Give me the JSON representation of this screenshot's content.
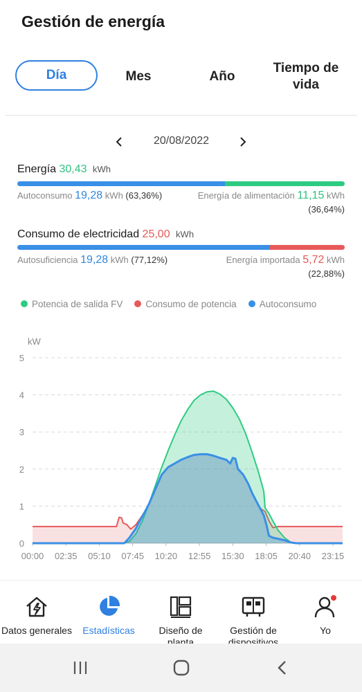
{
  "header": {
    "title": "Gestión de energía"
  },
  "tabs": [
    {
      "label": "Día",
      "active": true
    },
    {
      "label": "Mes",
      "active": false
    },
    {
      "label": "Año",
      "active": false
    },
    {
      "label": "Tiempo de vida",
      "active": false
    }
  ],
  "date": {
    "value": "20/08/2022"
  },
  "energy": {
    "label": "Energía",
    "value": "30,43",
    "unit": "kWh",
    "autoconsumo": {
      "label": "Autoconsumo",
      "value": "19,28",
      "unit": "kWh",
      "pct": "(63,36%)",
      "fraction": 0.6336
    },
    "alimentacion": {
      "label": "Energía de alimentación",
      "value": "11,15",
      "unit": "kWh",
      "pct": "(36,64%)"
    }
  },
  "consumption": {
    "label": "Consumo de electricidad",
    "value": "25,00",
    "unit": "kWh",
    "autosuficiencia": {
      "label": "Autosuficiencia",
      "value": "19,28",
      "unit": "kWh",
      "pct": "(77,12%)",
      "fraction": 0.7712
    },
    "importada": {
      "label": "Energía importada",
      "value": "5,72",
      "unit": "kWh",
      "pct": "(22,88%)"
    }
  },
  "legend": [
    {
      "label": "Potencia de salida FV",
      "color": "#2ecb82"
    },
    {
      "label": "Consumo de potencia",
      "color": "#e65a59"
    },
    {
      "label": "Autoconsumo",
      "color": "#3a8fe6"
    }
  ],
  "chart_data": {
    "type": "area",
    "ylabel": "kW",
    "ylim": [
      0,
      5
    ],
    "yticks": [
      "0",
      "1",
      "2",
      "3",
      "4",
      "5"
    ],
    "xlim": [
      0,
      24
    ],
    "xticks": [
      {
        "t": 0,
        "label": "00:00"
      },
      {
        "t": 2.5833,
        "label": "02:35"
      },
      {
        "t": 5.1667,
        "label": "05:10"
      },
      {
        "t": 7.75,
        "label": "07:45"
      },
      {
        "t": 10.3333,
        "label": "10:20"
      },
      {
        "t": 12.9167,
        "label": "12:55"
      },
      {
        "t": 15.5,
        "label": "15:30"
      },
      {
        "t": 18.0833,
        "label": "18:05"
      },
      {
        "t": 20.6667,
        "label": "20:40"
      },
      {
        "t": 23.25,
        "label": "23:15"
      }
    ],
    "grid": true,
    "series": [
      {
        "name": "Potencia de salida FV",
        "color": "#2ecb82",
        "points": [
          [
            0,
            0
          ],
          [
            7.0,
            0
          ],
          [
            7.5,
            0.05
          ],
          [
            8.0,
            0.25
          ],
          [
            8.5,
            0.6
          ],
          [
            9.0,
            1.05
          ],
          [
            9.5,
            1.55
          ],
          [
            10.0,
            2.05
          ],
          [
            10.5,
            2.5
          ],
          [
            11.0,
            2.92
          ],
          [
            11.5,
            3.3
          ],
          [
            12.0,
            3.6
          ],
          [
            12.5,
            3.85
          ],
          [
            13.0,
            4.0
          ],
          [
            13.5,
            4.08
          ],
          [
            14.0,
            4.1
          ],
          [
            14.5,
            4.02
          ],
          [
            15.0,
            3.88
          ],
          [
            15.5,
            3.65
          ],
          [
            16.0,
            3.35
          ],
          [
            16.5,
            2.95
          ],
          [
            17.0,
            2.45
          ],
          [
            17.5,
            1.9
          ],
          [
            17.9,
            1.4
          ],
          [
            18.0,
            0.95
          ],
          [
            18.3,
            0.8
          ],
          [
            18.6,
            0.6
          ],
          [
            19.0,
            0.35
          ],
          [
            19.5,
            0.15
          ],
          [
            20.0,
            0.02
          ],
          [
            20.5,
            0
          ],
          [
            24,
            0
          ]
        ]
      },
      {
        "name": "Consumo de potencia",
        "color": "#e65a59",
        "points": [
          [
            0,
            0.45
          ],
          [
            6.5,
            0.45
          ],
          [
            6.7,
            0.7
          ],
          [
            6.9,
            0.68
          ],
          [
            7.0,
            0.55
          ],
          [
            7.3,
            0.5
          ],
          [
            7.6,
            0.38
          ],
          [
            8.0,
            0.5
          ],
          [
            8.3,
            0.65
          ],
          [
            8.7,
            0.85
          ],
          [
            9.0,
            1.05
          ],
          [
            9.5,
            1.45
          ],
          [
            10.0,
            1.85
          ],
          [
            10.5,
            2.05
          ],
          [
            11.0,
            2.15
          ],
          [
            11.5,
            2.25
          ],
          [
            12.0,
            2.32
          ],
          [
            12.5,
            2.38
          ],
          [
            13.0,
            2.4
          ],
          [
            13.5,
            2.4
          ],
          [
            14.0,
            2.36
          ],
          [
            14.5,
            2.3
          ],
          [
            15.0,
            2.25
          ],
          [
            15.3,
            2.15
          ],
          [
            15.5,
            2.3
          ],
          [
            15.7,
            2.28
          ],
          [
            15.9,
            2.0
          ],
          [
            16.3,
            1.85
          ],
          [
            16.7,
            1.6
          ],
          [
            17.0,
            1.35
          ],
          [
            17.3,
            1.15
          ],
          [
            17.6,
            0.95
          ],
          [
            18.0,
            0.85
          ],
          [
            18.3,
            0.6
          ],
          [
            18.6,
            0.42
          ],
          [
            19.0,
            0.45
          ],
          [
            24,
            0.45
          ]
        ]
      },
      {
        "name": "Autoconsumo",
        "color": "#3a8fe6",
        "points": [
          [
            0,
            0
          ],
          [
            7.1,
            0
          ],
          [
            7.5,
            0.15
          ],
          [
            7.8,
            0.3
          ],
          [
            8.0,
            0.4
          ],
          [
            8.3,
            0.6
          ],
          [
            8.7,
            0.85
          ],
          [
            9.0,
            1.05
          ],
          [
            9.5,
            1.45
          ],
          [
            10.0,
            1.85
          ],
          [
            10.5,
            2.05
          ],
          [
            11.0,
            2.15
          ],
          [
            11.5,
            2.25
          ],
          [
            12.0,
            2.32
          ],
          [
            12.5,
            2.38
          ],
          [
            13.0,
            2.4
          ],
          [
            13.5,
            2.4
          ],
          [
            14.0,
            2.36
          ],
          [
            14.5,
            2.3
          ],
          [
            15.0,
            2.25
          ],
          [
            15.3,
            2.15
          ],
          [
            15.5,
            2.3
          ],
          [
            15.7,
            2.28
          ],
          [
            15.9,
            2.0
          ],
          [
            16.3,
            1.85
          ],
          [
            16.7,
            1.6
          ],
          [
            17.0,
            1.35
          ],
          [
            17.3,
            1.15
          ],
          [
            17.6,
            0.95
          ],
          [
            17.9,
            0.75
          ],
          [
            18.1,
            0.5
          ],
          [
            18.3,
            0.2
          ],
          [
            18.6,
            0.15
          ],
          [
            19.0,
            0.12
          ],
          [
            19.5,
            0.08
          ],
          [
            20.0,
            0.02
          ],
          [
            20.4,
            0
          ],
          [
            24,
            0
          ]
        ]
      }
    ]
  },
  "bottom_nav": [
    {
      "label": "Datos generales",
      "icon": "home-bolt-icon",
      "active": false
    },
    {
      "label": "Estadísticas",
      "icon": "pie-chart-icon",
      "active": true
    },
    {
      "label": "Diseño de planta",
      "icon": "layout-icon",
      "active": false
    },
    {
      "label": "Gestión de dispositivos",
      "icon": "device-icon",
      "active": false
    },
    {
      "label": "Yo",
      "icon": "user-icon",
      "active": false
    }
  ],
  "system_nav": [
    {
      "icon": "recents-icon"
    },
    {
      "icon": "home-circle-icon"
    },
    {
      "icon": "back-icon"
    }
  ]
}
